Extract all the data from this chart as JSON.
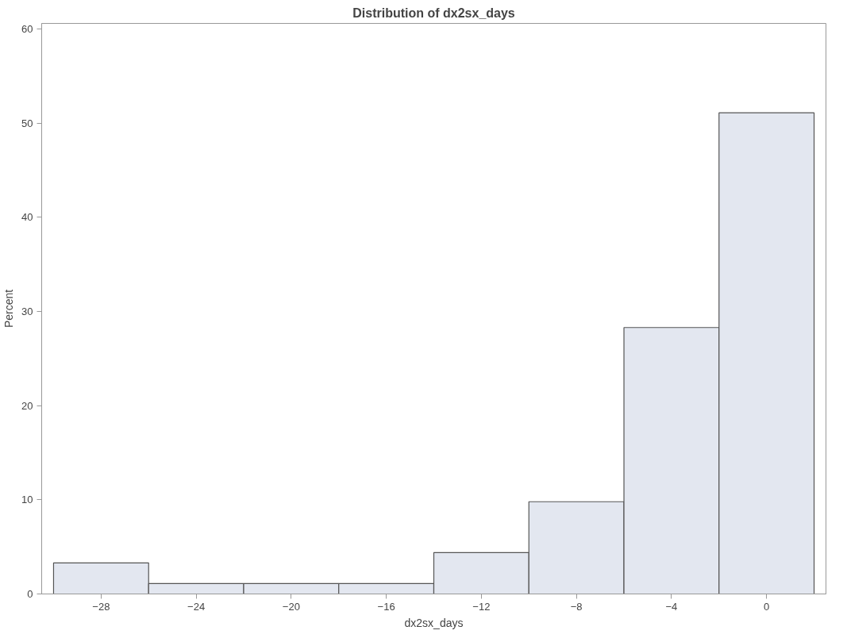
{
  "chart_data": {
    "type": "histogram",
    "title": "Distribution of dx2sx_days",
    "xlabel": "dx2sx_days",
    "ylabel": "Percent",
    "bins": [
      -30,
      -26,
      -22,
      -18,
      -14,
      -10,
      -6,
      -2,
      2
    ],
    "values": [
      3.3,
      1.1,
      1.1,
      1.1,
      4.4,
      9.8,
      28.3,
      51.1
    ],
    "color": "#e3e7f0",
    "xlim": [
      -30.5,
      2.5
    ],
    "xticks": [
      -28,
      -24,
      -20,
      -16,
      -12,
      -8,
      -4,
      0
    ],
    "ylim": [
      0,
      60.6
    ],
    "yticks": [
      0,
      10,
      20,
      30,
      40,
      50,
      60
    ],
    "grid": false
  }
}
